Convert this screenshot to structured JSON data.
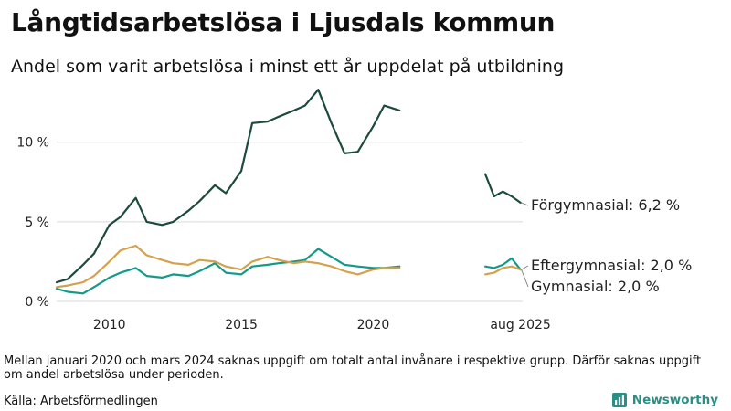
{
  "title": "Långtidsarbetslösa i Ljusdals kommun",
  "subtitle": "Andel som varit arbetslösa i minst ett år uppdelat på utbildning",
  "footnote": "Mellan januari 2020 och mars 2024 saknas uppgift om totalt antal invånare i respektive grupp. Därför saknas uppgift om andel arbetslösa under perioden.",
  "source": "Källa: Arbetsförmedlingen",
  "logo_text": "Newsworthy",
  "logo_icon": "bar-chart-logo-icon",
  "chart_data": {
    "type": "line",
    "title": "Långtidsarbetslösa i Ljusdals kommun",
    "subtitle": "Andel som varit arbetslösa i minst ett år uppdelat på utbildning",
    "y_unit": "%",
    "ylim": [
      0,
      14
    ],
    "y_ticks": [
      0,
      5,
      10
    ],
    "y_tick_labels": [
      "0 %",
      "5 %",
      "10 %"
    ],
    "xlim": [
      "2008-01",
      "2025-09"
    ],
    "x_tick_labels": [
      {
        "x": "2010-01",
        "label": "2010"
      },
      {
        "x": "2015-01",
        "label": "2015"
      },
      {
        "x": "2020-01",
        "label": "2020"
      },
      {
        "x": "2025-08",
        "label": "aug 2025"
      }
    ],
    "grid": "horizontal",
    "legend": "inline labels at line ends",
    "series": [
      {
        "name": "Förgymnasial",
        "end_label": "Förgymnasial: 6,2 %",
        "color": "#1d4a3f",
        "x": [
          "2008-01",
          "2008-06",
          "2009-01",
          "2009-06",
          "2010-01",
          "2010-06",
          "2011-01",
          "2011-06",
          "2012-01",
          "2012-06",
          "2013-01",
          "2013-06",
          "2014-01",
          "2014-06",
          "2015-01",
          "2015-06",
          "2016-01",
          "2016-06",
          "2017-01",
          "2017-06",
          "2017-12",
          "2018-06",
          "2018-12",
          "2019-06",
          "2020-01",
          "2020-06",
          "2021-01",
          null,
          "2024-04",
          "2024-08",
          "2024-12",
          "2025-04",
          "2025-08"
        ],
        "values": [
          1.2,
          1.4,
          2.3,
          3.0,
          4.8,
          5.3,
          6.5,
          5.0,
          4.8,
          5.0,
          5.7,
          6.3,
          7.3,
          6.8,
          8.2,
          11.2,
          11.3,
          11.6,
          12.0,
          12.3,
          13.3,
          11.2,
          9.3,
          9.4,
          11.0,
          12.3,
          12.0,
          null,
          8.0,
          6.6,
          6.9,
          6.6,
          6.2
        ]
      },
      {
        "name": "Eftergymnasial",
        "end_label": "Eftergymnasial: 2,0 %",
        "color": "#139a8a",
        "x": [
          "2008-01",
          "2008-06",
          "2009-01",
          "2009-06",
          "2010-01",
          "2010-06",
          "2011-01",
          "2011-06",
          "2012-01",
          "2012-06",
          "2013-01",
          "2013-06",
          "2014-01",
          "2014-06",
          "2015-01",
          "2015-06",
          "2016-01",
          "2016-06",
          "2017-01",
          "2017-06",
          "2017-12",
          "2018-06",
          "2018-12",
          "2019-06",
          "2020-01",
          "2020-06",
          "2021-01",
          null,
          "2024-04",
          "2024-08",
          "2024-12",
          "2025-04",
          "2025-08"
        ],
        "values": [
          0.8,
          0.6,
          0.5,
          0.9,
          1.5,
          1.8,
          2.1,
          1.6,
          1.5,
          1.7,
          1.6,
          1.9,
          2.4,
          1.8,
          1.7,
          2.2,
          2.3,
          2.4,
          2.5,
          2.6,
          3.3,
          2.8,
          2.3,
          2.2,
          2.1,
          2.1,
          2.2,
          null,
          2.2,
          2.1,
          2.3,
          2.7,
          2.0
        ]
      },
      {
        "name": "Gymnasial",
        "end_label": "Gymnasial: 2,0 %",
        "color": "#d4a24f",
        "x": [
          "2008-01",
          "2008-06",
          "2009-01",
          "2009-06",
          "2010-01",
          "2010-06",
          "2011-01",
          "2011-06",
          "2012-01",
          "2012-06",
          "2013-01",
          "2013-06",
          "2014-01",
          "2014-06",
          "2015-01",
          "2015-06",
          "2016-01",
          "2016-06",
          "2017-01",
          "2017-06",
          "2017-12",
          "2018-06",
          "2018-12",
          "2019-06",
          "2020-01",
          "2020-06",
          "2021-01",
          null,
          "2024-04",
          "2024-08",
          "2024-12",
          "2025-04",
          "2025-08"
        ],
        "values": [
          0.9,
          1.0,
          1.2,
          1.6,
          2.5,
          3.2,
          3.5,
          2.9,
          2.6,
          2.4,
          2.3,
          2.6,
          2.5,
          2.2,
          2.0,
          2.5,
          2.8,
          2.6,
          2.4,
          2.5,
          2.4,
          2.2,
          1.9,
          1.7,
          2.0,
          2.1,
          2.1,
          null,
          1.7,
          1.8,
          2.1,
          2.2,
          2.0
        ]
      }
    ]
  }
}
